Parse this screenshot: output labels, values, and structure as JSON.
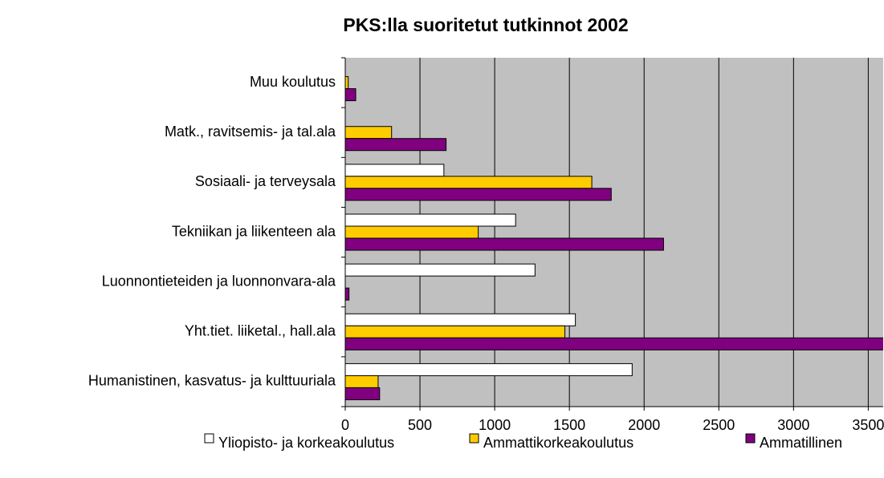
{
  "chart_data": {
    "type": "hbar",
    "title": "PKS:lla suoritetut tutkinnot 2002",
    "categories": [
      "Muu koulutus",
      "Matk., ravitsemis- ja tal.ala",
      "Sosiaali- ja terveysala",
      "Tekniikan ja liikenteen ala",
      "Luonnontieteiden ja luonnonvara-ala",
      "Yht.tiet. liiketal., hall.ala",
      "Humanistinen, kasvatus- ja kulttuuriala"
    ],
    "series": [
      {
        "name": "Yliopisto- ja korkeakoulutus",
        "color": "#ffffff",
        "values": [
          0,
          0,
          660,
          1140,
          1270,
          1540,
          1920
        ]
      },
      {
        "name": "Ammattikorkeakoulutus",
        "color": "#ffcc00",
        "values": [
          20,
          310,
          1650,
          890,
          0,
          1470,
          220
        ]
      },
      {
        "name": "Ammatillinen",
        "color": "#800080",
        "values": [
          70,
          675,
          1780,
          2130,
          25,
          3700,
          230
        ]
      }
    ],
    "xlim": [
      0,
      3600
    ],
    "xticks": [
      0,
      500,
      1000,
      1500,
      2000,
      2500,
      3000,
      3500
    ],
    "grid": true,
    "legend": "bottom",
    "plot_background": "#c0c0c0"
  }
}
